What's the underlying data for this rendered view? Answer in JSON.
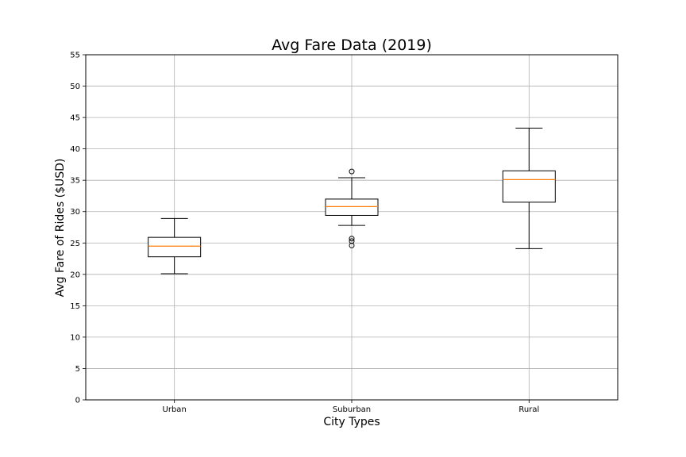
{
  "chart_data": {
    "type": "box",
    "title": "Avg Fare Data (2019)",
    "xlabel": "City Types",
    "ylabel": "Avg Fare of Rides ($USD)",
    "ylim": [
      0,
      55
    ],
    "yticks": [
      0,
      5,
      10,
      15,
      20,
      25,
      30,
      35,
      40,
      45,
      50,
      55
    ],
    "grid": true,
    "categories": [
      "Urban",
      "Suburban",
      "Rural"
    ],
    "boxes": [
      {
        "category": "Urban",
        "whisker_low": 20.1,
        "q1": 22.8,
        "median": 24.5,
        "q3": 25.9,
        "whisker_high": 28.9,
        "outliers": []
      },
      {
        "category": "Suburban",
        "whisker_low": 27.8,
        "q1": 29.4,
        "median": 30.8,
        "q3": 32.0,
        "whisker_high": 35.4,
        "outliers": [
          36.4,
          25.7,
          25.3,
          24.6
        ]
      },
      {
        "category": "Rural",
        "whisker_low": 24.1,
        "q1": 31.5,
        "median": 35.1,
        "q3": 36.5,
        "whisker_high": 43.3,
        "outliers": []
      }
    ],
    "colors": {
      "box": "#000000",
      "median": "#ff7f0e",
      "grid": "#b0b0b0"
    }
  }
}
